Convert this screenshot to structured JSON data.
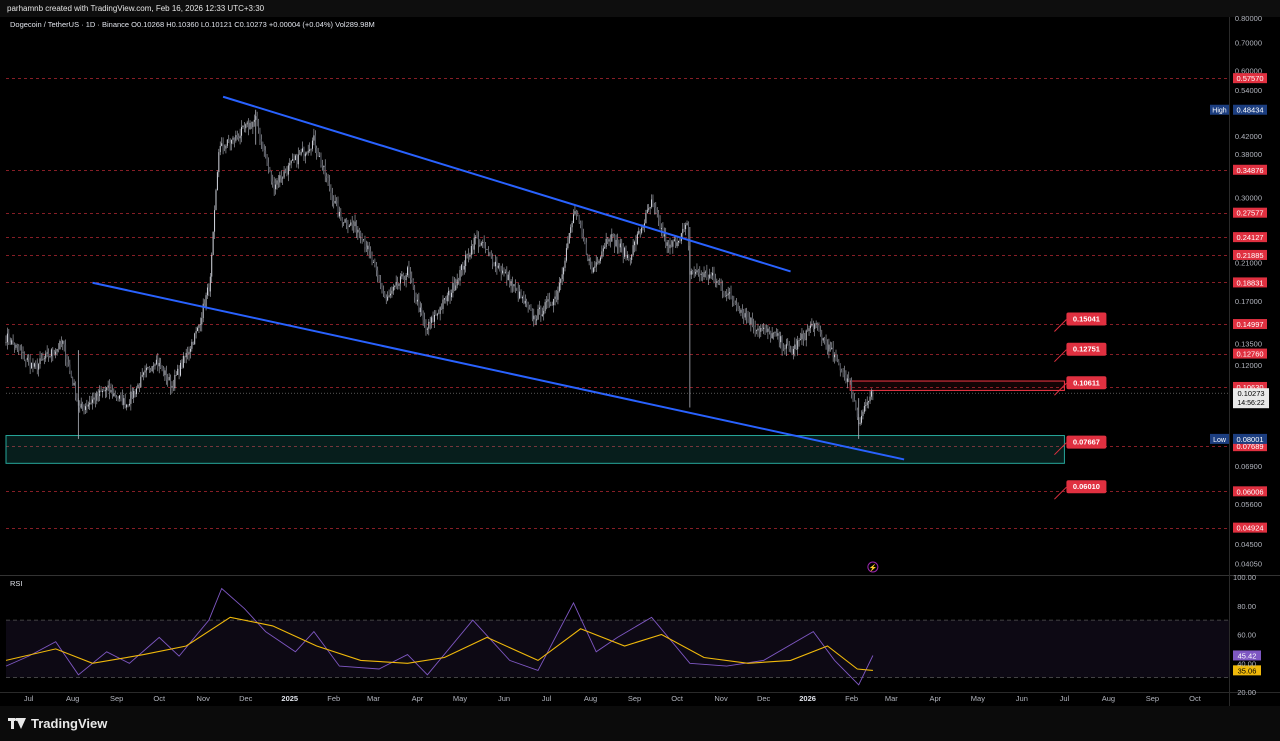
{
  "header": {
    "attribution": "parhamnb created with TradingView.com, Feb 16, 2026 12:33 UTC+3:30"
  },
  "legend": {
    "symbol": "Dogecoin / TetherUS · 1D · Binance",
    "open": "O0.10268",
    "high": "H0.10360",
    "low": "L0.10121",
    "close": "C0.10273",
    "change": "+0.00004 (+0.04%)",
    "volume": "Vol289.98M"
  },
  "footer": {
    "brand": "TradingView"
  },
  "colors": {
    "background": "#000000",
    "candles": "#b2b5be",
    "trendline": "#2962ff",
    "level_line": "#b22833",
    "level_tag": "#e03040",
    "zone_green": "#26a69a",
    "zone_red": "#f23645",
    "rsi_line": "#7e57c2",
    "rsi_ma": "#f0b90b",
    "high_low_tag": "#1c3e80"
  },
  "chart_data": [
    {
      "type": "candlestick",
      "title": "Dogecoin / TetherUS · 1D · Binance",
      "y_scale": "log",
      "ylim": [
        0.038,
        0.8
      ],
      "x_tick_labels": [
        "Jul",
        "Aug",
        "Sep",
        "Oct",
        "Nov",
        "Dec",
        "2025",
        "Feb",
        "Mar",
        "Apr",
        "May",
        "Jun",
        "Jul",
        "Aug",
        "Sep",
        "Oct",
        "Nov",
        "Dec",
        "2026",
        "Feb",
        "Mar",
        "Apr",
        "May",
        "Jun",
        "Jul",
        "Aug",
        "Sep",
        "Oct"
      ],
      "x_tick_bold": [
        "2025",
        "2026"
      ],
      "y_tick_labels": [
        {
          "v": 0.8,
          "label": "0.80000"
        },
        {
          "v": 0.7,
          "label": "0.70000"
        },
        {
          "v": 0.6,
          "label": "0.60000"
        },
        {
          "v": 0.54,
          "label": "0.54000"
        },
        {
          "v": 0.42,
          "label": "0.42000"
        },
        {
          "v": 0.38,
          "label": "0.38000"
        },
        {
          "v": 0.3,
          "label": "0.30000"
        },
        {
          "v": 0.21,
          "label": "0.21000"
        },
        {
          "v": 0.17,
          "label": "0.17000"
        },
        {
          "v": 0.135,
          "label": "0.13500"
        },
        {
          "v": 0.12,
          "label": "0.12000"
        },
        {
          "v": 0.069,
          "label": "0.06900"
        },
        {
          "v": 0.056,
          "label": "0.05600"
        },
        {
          "v": 0.045,
          "label": "0.04500"
        },
        {
          "v": 0.0405,
          "label": "0.04050"
        }
      ],
      "levels": [
        {
          "v": 0.5757,
          "label": "0.57570"
        },
        {
          "v": 0.34876,
          "label": "0.34876"
        },
        {
          "v": 0.27577,
          "label": "0.27577"
        },
        {
          "v": 0.24127,
          "label": "0.24127"
        },
        {
          "v": 0.21885,
          "label": "0.21885"
        },
        {
          "v": 0.18831,
          "label": "0.18831"
        },
        {
          "v": 0.14997,
          "label": "0.14997"
        },
        {
          "v": 0.1276,
          "label": "0.12760"
        },
        {
          "v": 0.1063,
          "label": "0.10630"
        },
        {
          "v": 0.07689,
          "label": "0.07689"
        },
        {
          "v": 0.06006,
          "label": "0.06006"
        },
        {
          "v": 0.04924,
          "label": "0.04924"
        }
      ],
      "annotations": [
        {
          "v": 0.15041,
          "label": "0.15041"
        },
        {
          "v": 0.12751,
          "label": "0.12751"
        },
        {
          "v": 0.10611,
          "label": "0.10611"
        },
        {
          "v": 0.07667,
          "label": "0.07667"
        },
        {
          "v": 0.0601,
          "label": "0.06010"
        }
      ],
      "high_marker": {
        "label": "High",
        "value": "0.48434",
        "v": 0.48434
      },
      "low_marker": {
        "label": "Low",
        "value": "0.08001",
        "v": 0.08001
      },
      "last_price": {
        "value": "0.10273",
        "countdown": "14:56:22",
        "v": 0.10273
      },
      "trendlines": [
        {
          "name": "upper-channel",
          "from": {
            "date": "2024-11-15",
            "v": 0.52
          },
          "to": {
            "date": "2025-12-20",
            "v": 0.2
          }
        },
        {
          "name": "lower-channel",
          "from": {
            "date": "2024-08-15",
            "v": 0.188
          },
          "to": {
            "date": "2026-03-10",
            "v": 0.0715
          }
        }
      ],
      "zones": [
        {
          "name": "support-zone",
          "color": "green",
          "x_start": "2024-06-15",
          "x_end": "2026-07-01",
          "y_low": 0.07,
          "y_high": 0.0815
        },
        {
          "name": "resistance-box",
          "color": "red",
          "x_start": "2026-01-31",
          "x_end": "2026-07-01",
          "y_low": 0.1043,
          "y_high": 0.1098
        }
      ],
      "close_anchors": [
        {
          "date": "2024-06-15",
          "close": 0.14
        },
        {
          "date": "2024-07-05",
          "close": 0.118
        },
        {
          "date": "2024-07-25",
          "close": 0.135
        },
        {
          "date": "2024-08-06",
          "close": 0.094
        },
        {
          "date": "2024-08-25",
          "close": 0.105
        },
        {
          "date": "2024-09-08",
          "close": 0.097
        },
        {
          "date": "2024-09-28",
          "close": 0.124
        },
        {
          "date": "2024-10-10",
          "close": 0.107
        },
        {
          "date": "2024-10-28",
          "close": 0.145
        },
        {
          "date": "2024-11-06",
          "close": 0.19
        },
        {
          "date": "2024-11-12",
          "close": 0.39
        },
        {
          "date": "2024-11-22",
          "close": 0.41
        },
        {
          "date": "2024-12-08",
          "close": 0.46
        },
        {
          "date": "2024-12-20",
          "close": 0.32
        },
        {
          "date": "2025-01-18",
          "close": 0.41
        },
        {
          "date": "2025-01-27",
          "close": 0.33
        },
        {
          "date": "2025-02-05",
          "close": 0.27
        },
        {
          "date": "2025-02-20",
          "close": 0.25
        },
        {
          "date": "2025-03-10",
          "close": 0.17
        },
        {
          "date": "2025-03-25",
          "close": 0.2
        },
        {
          "date": "2025-04-07",
          "close": 0.145
        },
        {
          "date": "2025-04-25",
          "close": 0.18
        },
        {
          "date": "2025-05-12",
          "close": 0.24
        },
        {
          "date": "2025-06-05",
          "close": 0.19
        },
        {
          "date": "2025-06-22",
          "close": 0.155
        },
        {
          "date": "2025-07-08",
          "close": 0.175
        },
        {
          "date": "2025-07-21",
          "close": 0.28
        },
        {
          "date": "2025-08-02",
          "close": 0.2
        },
        {
          "date": "2025-08-14",
          "close": 0.245
        },
        {
          "date": "2025-08-28",
          "close": 0.215
        },
        {
          "date": "2025-09-13",
          "close": 0.29
        },
        {
          "date": "2025-09-25",
          "close": 0.225
        },
        {
          "date": "2025-10-08",
          "close": 0.255
        },
        {
          "date": "2025-10-10",
          "close": 0.2
        },
        {
          "date": "2025-10-25",
          "close": 0.195
        },
        {
          "date": "2025-11-10",
          "close": 0.17
        },
        {
          "date": "2025-11-25",
          "close": 0.148
        },
        {
          "date": "2025-12-10",
          "close": 0.14
        },
        {
          "date": "2025-12-20",
          "close": 0.128
        },
        {
          "date": "2026-01-05",
          "close": 0.15
        },
        {
          "date": "2026-01-20",
          "close": 0.125
        },
        {
          "date": "2026-01-31",
          "close": 0.108
        },
        {
          "date": "2026-02-06",
          "close": 0.088
        },
        {
          "date": "2026-02-10",
          "close": 0.095
        },
        {
          "date": "2026-02-16",
          "close": 0.10273
        }
      ]
    },
    {
      "type": "line",
      "title": "RSI",
      "ylim": [
        20,
        100
      ],
      "y_tick_labels": [
        "100.00",
        "80.00",
        "60.00",
        "40.00",
        "20.00"
      ],
      "band": [
        30,
        70
      ],
      "series": [
        {
          "name": "RSI",
          "value_label": "45.42",
          "last": 45.42,
          "points": [
            [
              "2024-06-15",
              38
            ],
            [
              "2024-07-01",
              45
            ],
            [
              "2024-07-20",
              55
            ],
            [
              "2024-08-05",
              32
            ],
            [
              "2024-08-25",
              48
            ],
            [
              "2024-09-10",
              40
            ],
            [
              "2024-10-01",
              58
            ],
            [
              "2024-10-15",
              45
            ],
            [
              "2024-11-05",
              70
            ],
            [
              "2024-11-14",
              92
            ],
            [
              "2024-11-30",
              78
            ],
            [
              "2024-12-15",
              62
            ],
            [
              "2025-01-05",
              48
            ],
            [
              "2025-01-18",
              62
            ],
            [
              "2025-02-05",
              38
            ],
            [
              "2025-03-05",
              36
            ],
            [
              "2025-03-25",
              46
            ],
            [
              "2025-04-08",
              32
            ],
            [
              "2025-05-10",
              70
            ],
            [
              "2025-06-05",
              42
            ],
            [
              "2025-06-25",
              35
            ],
            [
              "2025-07-20",
              82
            ],
            [
              "2025-08-05",
              48
            ],
            [
              "2025-08-20",
              58
            ],
            [
              "2025-09-13",
              72
            ],
            [
              "2025-10-10",
              40
            ],
            [
              "2025-11-05",
              38
            ],
            [
              "2025-12-01",
              42
            ],
            [
              "2026-01-05",
              62
            ],
            [
              "2026-01-20",
              42
            ],
            [
              "2026-02-06",
              25
            ],
            [
              "2026-02-16",
              45.42
            ]
          ]
        },
        {
          "name": "RSI-based MA",
          "value_label": "35.06",
          "last": 35.06,
          "points": [
            [
              "2024-06-15",
              42
            ],
            [
              "2024-07-20",
              50
            ],
            [
              "2024-08-15",
              40
            ],
            [
              "2024-09-20",
              46
            ],
            [
              "2024-10-20",
              52
            ],
            [
              "2024-11-20",
              72
            ],
            [
              "2024-12-20",
              66
            ],
            [
              "2025-01-20",
              52
            ],
            [
              "2025-02-20",
              42
            ],
            [
              "2025-03-25",
              40
            ],
            [
              "2025-04-20",
              44
            ],
            [
              "2025-05-20",
              58
            ],
            [
              "2025-06-25",
              42
            ],
            [
              "2025-07-25",
              64
            ],
            [
              "2025-08-25",
              52
            ],
            [
              "2025-09-20",
              60
            ],
            [
              "2025-10-20",
              44
            ],
            [
              "2025-11-20",
              40
            ],
            [
              "2025-12-20",
              42
            ],
            [
              "2026-01-15",
              52
            ],
            [
              "2026-02-05",
              36
            ],
            [
              "2026-02-16",
              35.06
            ]
          ]
        }
      ]
    }
  ]
}
